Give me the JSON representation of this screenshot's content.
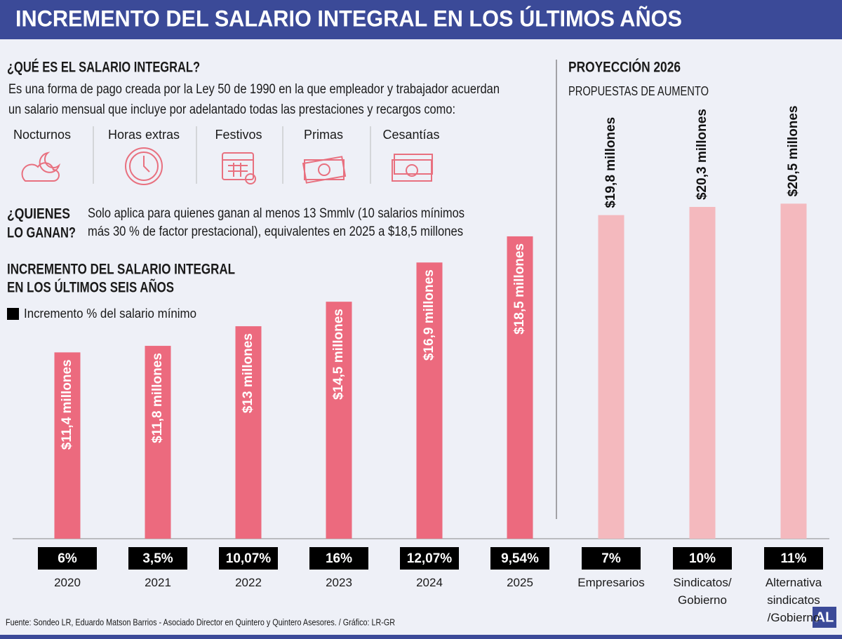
{
  "header": {
    "title": "INCREMENTO DEL SALARIO INTEGRAL EN LOS ÚLTIMOS AÑOS"
  },
  "definition": {
    "heading": "¿QUÉ ES EL SALARIO INTEGRAL?",
    "lines": [
      "Es una forma de pago creada por la  Ley 50 de 1990 en la que empleador y trabajador acuerdan",
      "un salario mensual que incluye por adelantado todas las prestaciones y recargos como:"
    ],
    "items": [
      "Nocturnos",
      "Horas extras",
      "Festivos",
      "Primas",
      "Cesantías"
    ]
  },
  "who": {
    "heading": [
      "¿QUIENES",
      "LO GANAN?"
    ],
    "lines": [
      "Solo aplica para quienes ganan al menos 13 Smmlv (10 salarios mínimos",
      "más 30 % de factor prestacional), equivalentes en 2025 a $18,5 millones"
    ]
  },
  "projection": {
    "heading": "PROYECCIÓN 2026",
    "subheading": "PROPUESTAS DE AUMENTO"
  },
  "chart_data": {
    "type": "bar",
    "title": [
      "INCREMENTO DEL SALARIO INTEGRAL",
      "EN LOS ÚLTIMOS SEIS AÑOS"
    ],
    "categories": [
      "2020",
      "2021",
      "2022",
      "2023",
      "2024",
      "2025",
      "Empresarios",
      "Sindicatos/\nGobierno",
      "Alternativa\nsindicatos\n/Gobierno"
    ],
    "values": [
      11.4,
      11.8,
      13,
      14.5,
      16.9,
      18.5,
      19.8,
      20.3,
      20.5
    ],
    "value_labels": [
      "$11,4 millones",
      "$11,8 millones",
      "$13 millones",
      "$14,5 millones",
      "$16,9 millones",
      "$18,5 millones",
      "$19,8 millones",
      "$20,3 millones",
      "$20,5 millones"
    ],
    "colors": [
      "#ec6a7e",
      "#ec6a7e",
      "#ec6a7e",
      "#ec6a7e",
      "#ec6a7e",
      "#ec6a7e",
      "#f4b9be",
      "#f4b9be",
      "#f4b9be"
    ],
    "increments": {
      "name": "Incremento % del salario mínimo",
      "color": "#000000",
      "values": [
        6,
        3.5,
        10.07,
        16,
        12.07,
        9.54,
        7,
        10,
        11
      ],
      "value_labels": [
        "6%",
        "3,5%",
        "10,07%",
        "16%",
        "12,07%",
        "9,54%",
        "7%",
        "10%",
        "11%"
      ]
    }
  },
  "footer": {
    "source": "Fuente: Sondeo LR, Eduardo Matson Barrios - Asociado Director en Quintero y Quintero Asesores.  / Gráfico: LR-GR",
    "logo": "AL"
  }
}
